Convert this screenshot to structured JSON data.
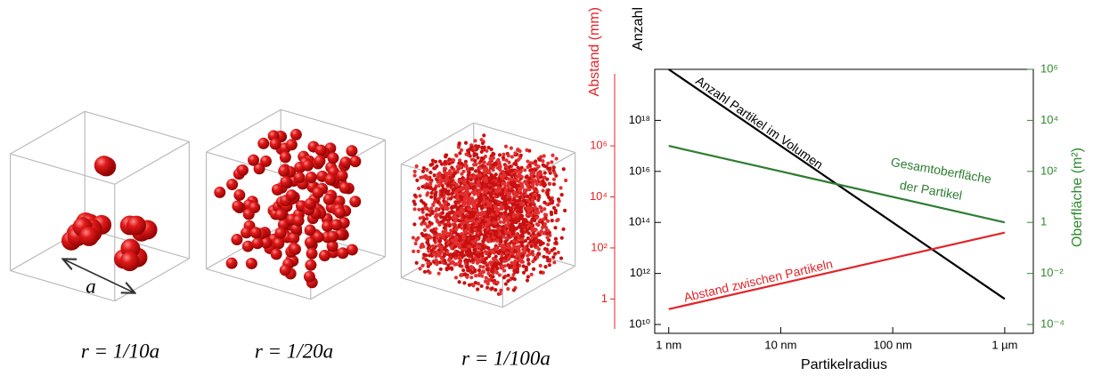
{
  "illustrations": [
    {
      "caption": "r = 1/10a"
    },
    {
      "caption": "r = 1/20a"
    },
    {
      "caption": "r = 1/100a"
    }
  ],
  "edge_label": "a",
  "chart_data": {
    "type": "line",
    "xlabel": "Partikelradius",
    "ylabel": "Anzahl",
    "y2label": "Oberfläche (m²)",
    "y3label": "Abstand (mm)",
    "xscale": "log",
    "yscale": "log",
    "x": [
      1,
      1000
    ],
    "xlim": [
      0.75,
      1800
    ],
    "xticks": [
      {
        "value": 1,
        "label": "1 nm"
      },
      {
        "value": 10,
        "label": "10 nm"
      },
      {
        "value": 100,
        "label": "100 nm"
      },
      {
        "value": 1000,
        "label": "1 µm"
      }
    ],
    "ylim": [
      4500000000.0,
      1e+20
    ],
    "yticks": [
      {
        "value": 10000000000.0,
        "label": "10¹⁰"
      },
      {
        "value": 1000000000000.0,
        "label": "10¹²"
      },
      {
        "value": 100000000000000.0,
        "label": "10¹⁴"
      },
      {
        "value": 1e+16,
        "label": "10¹⁶"
      },
      {
        "value": 1e+18,
        "label": "10¹⁸"
      }
    ],
    "y2lim": [
      4.5e-05,
      1000000.0
    ],
    "y2ticks": [
      {
        "value": 0.0001,
        "label": "10⁻⁴"
      },
      {
        "value": 0.01,
        "label": "10⁻²"
      },
      1,
      {
        "value": 100,
        "label": "10²"
      },
      {
        "value": 10000,
        "label": "10⁴"
      },
      {
        "value": 1000000,
        "label": "10⁶"
      }
    ],
    "y3lim": [
      0.045,
      1000000000.0
    ],
    "y3ticks": [
      1,
      {
        "value": 100,
        "label": "10²"
      },
      {
        "value": 10000,
        "label": "10⁴"
      },
      {
        "value": 1000000,
        "label": "10⁶"
      }
    ],
    "axis_colors": {
      "y": "#000000",
      "y2": "#2e8b2e",
      "y3": "#e0262b"
    },
    "series": [
      {
        "color": "#000000",
        "values": [
          1e+20,
          100000000000.0
        ]
      },
      {
        "color": "#2e7d32",
        "axis": "y2",
        "values": [
          1000,
          1
        ]
      },
      {
        "color": "#e0262b",
        "axis": "y3",
        "values": [
          0.4,
          400
        ]
      }
    ],
    "annotations": [
      "Anzahl Partikel im Volumen",
      "Gesamtoberfläche",
      "der Partikel",
      "Abstand zwischen Partikeln"
    ]
  }
}
